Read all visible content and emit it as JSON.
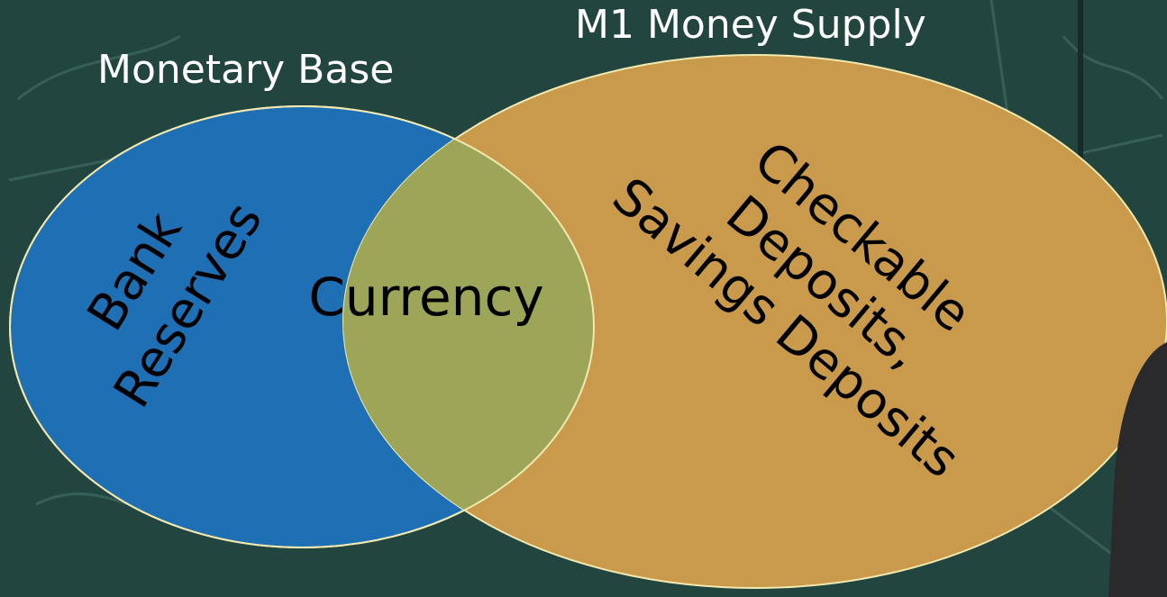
{
  "diagram": {
    "monetary_base_label": "Monetary Base",
    "m1_label": "M1 Money Supply",
    "left_only": [
      "Bank",
      "Reserves"
    ],
    "overlap": "Currency",
    "right_only": [
      "Checkable",
      "Deposits,",
      "Savings Deposits"
    ]
  },
  "colors": {
    "chalkboard": "#22463f",
    "monetary_base_fill": "#1f6fb5",
    "m1_fill": "#c99a4b",
    "overlap_fill": "#9da558",
    "outline": "#f1e9b0",
    "text_dark": "#000000",
    "text_light": "#ffffff"
  }
}
